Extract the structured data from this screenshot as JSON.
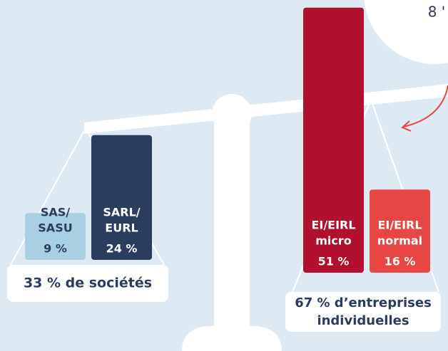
{
  "note": "8 '",
  "groups": [
    {
      "label": "33 % de sociétés",
      "bars": [
        {
          "label": [
            "SAS/",
            "SASU"
          ],
          "value": 9,
          "value_label": "9 %",
          "color": "#a9cfe3",
          "text_color": "#2b3c5c"
        },
        {
          "label": [
            "SARL/",
            "EURL"
          ],
          "value": 24,
          "value_label": "24 %",
          "color": "#2b3d5e",
          "text_color": "#ffffff"
        }
      ]
    },
    {
      "label": [
        "67 % d’entreprises",
        "individuelles"
      ],
      "bars": [
        {
          "label": [
            "EI/EIRL",
            "micro"
          ],
          "value": 51,
          "value_label": "51 %",
          "color": "#b0102d",
          "text_color": "#ffffff"
        },
        {
          "label": [
            "EI/EIRL",
            "normal"
          ],
          "value": 16,
          "value_label": "16 %",
          "color": "#e84545",
          "text_color": "#ffffff"
        }
      ]
    }
  ]
}
